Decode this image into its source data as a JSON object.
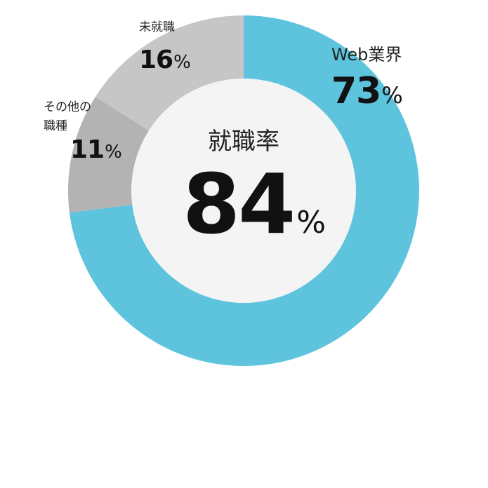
{
  "chart_data": {
    "type": "pie",
    "donut": true,
    "center": {
      "title": "就職率",
      "value": "84",
      "unit": "%"
    },
    "slices": [
      {
        "label": "Web業界",
        "value": 73,
        "unit": "%",
        "color": "#5ec3dc"
      },
      {
        "label_lines": [
          "その他の",
          "職種"
        ],
        "value": 11,
        "unit": "%",
        "color": "#b3b3b3"
      },
      {
        "label": "未就職",
        "value": 16,
        "unit": "%",
        "color": "#c6c6c6"
      }
    ],
    "inner_color": "#f4f4f4",
    "legend": "none"
  }
}
